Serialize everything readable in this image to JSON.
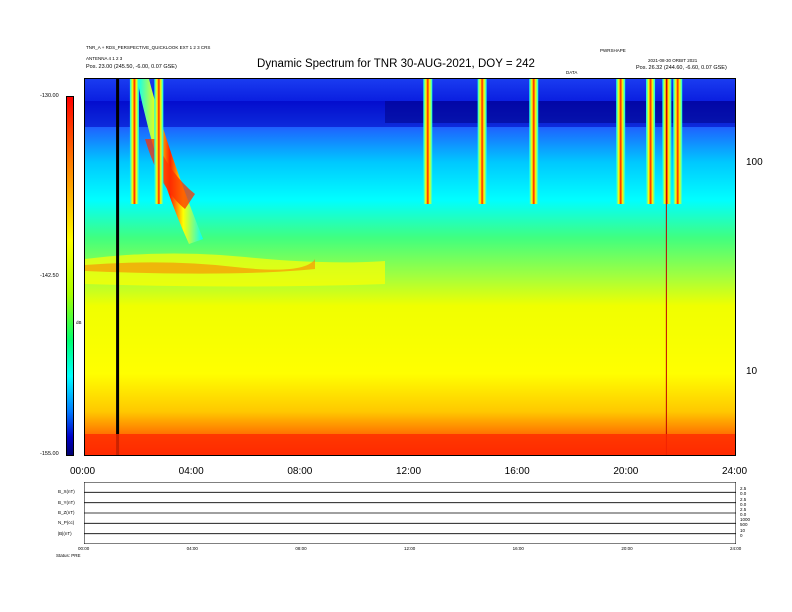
{
  "chart_data": [
    {
      "type": "heatmap",
      "title": "Dynamic Spectrum for TNR 30-AUG-2021, DOY = 242",
      "header_left": [
        "TNR_A + RDS_PERSPECTIVE_QUICKLOOK EXT 1 2 3 CRS",
        "ANTENNA 4 1 2 3",
        "Pos. 23.00 (245.50, -6.00, 0.07 GSE)"
      ],
      "header_right": [
        "PWRSHAPE",
        "2021-08-30 ORBIT 2021",
        "Pos. 26.32 (244.60, -6.60, 0.07 GSE)"
      ],
      "header_marker": "DATA",
      "colorbar": {
        "label": "dB",
        "ticks": [
          "-130.00",
          "-142.50",
          "-155.00"
        ],
        "range": [
          -155,
          -130
        ]
      },
      "x_ticks": [
        "00:00",
        "04:00",
        "08:00",
        "12:00",
        "16:00",
        "20:00",
        "24:00"
      ],
      "xlim_hours": [
        0,
        24
      ],
      "y_scale": "log",
      "y_ticks": [
        "100",
        "10"
      ],
      "y_range_khz": [
        4,
        300
      ],
      "events_hours": [
        1.8,
        2.7,
        12.6,
        14.6,
        16.5,
        19.7,
        20.8,
        21.4,
        21.8
      ],
      "black_line_hour": 1.2,
      "red_line_hour": 21.4
    },
    {
      "type": "line",
      "x_ticks": [
        "00:00",
        "04:00",
        "08:00",
        "12:00",
        "16:00",
        "20:00",
        "24:00"
      ],
      "series": [
        {
          "name": "B_X(nT)",
          "right_ticks": [
            "2.5",
            "0.0"
          ]
        },
        {
          "name": "B_Y(nT)",
          "right_ticks": [
            "2.5",
            "0.0"
          ]
        },
        {
          "name": "B_Z(nT)",
          "right_ticks": [
            "2.5",
            "0.0"
          ]
        },
        {
          "name": "N_P(cc)",
          "right_ticks": [
            "1000",
            "500"
          ]
        },
        {
          "name": "|B|(nT)",
          "right_ticks": [
            "10",
            "0"
          ]
        }
      ],
      "footer": "Status: PRE"
    }
  ]
}
